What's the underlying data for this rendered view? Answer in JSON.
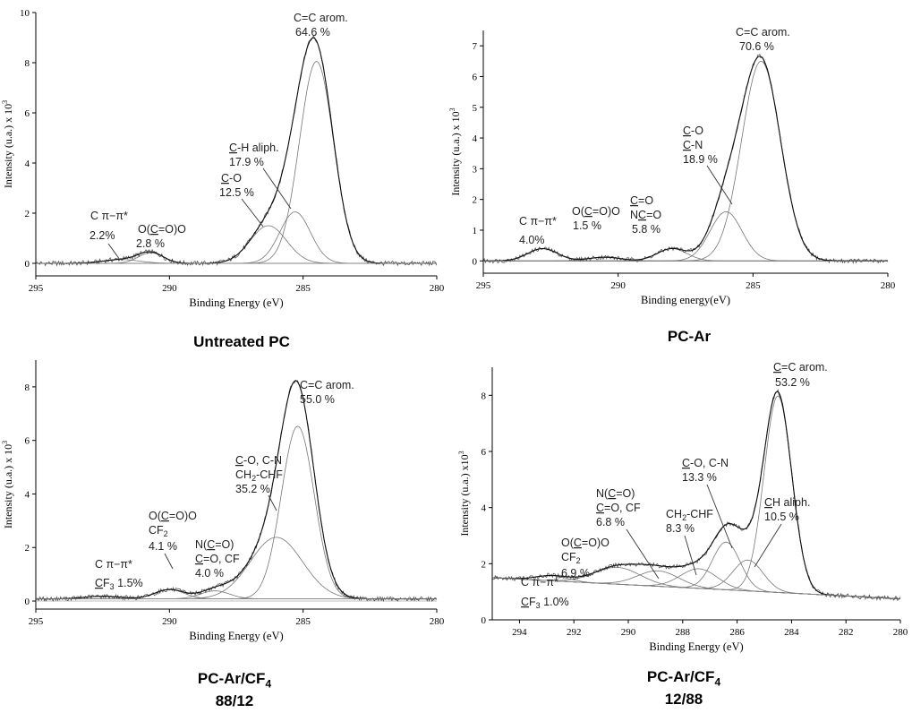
{
  "chart_data": [
    {
      "type": "line",
      "caption": "Untreated PC",
      "xlabel": "Binding Energy (eV)",
      "ylabel": "Intensity (u.a.) x 10",
      "ylabel_sup": "3",
      "xlim": [
        295,
        280
      ],
      "ylim": [
        -0.5,
        10
      ],
      "xticks": [
        295,
        290,
        285,
        280
      ],
      "yticks": [
        0,
        2,
        4,
        6,
        8,
        10
      ],
      "x_reversed": true,
      "peaks": [
        {
          "label": "C=C arom.",
          "value": "64.6 %",
          "center": 284.5,
          "height": 8.05,
          "fwhm": 1.5
        },
        {
          "label": "C-H aliph.",
          "value": "17.9 %",
          "center": 285.3,
          "height": 2.05,
          "fwhm": 1.35
        },
        {
          "label": "C-O",
          "value": "12.5 %",
          "center": 286.3,
          "height": 1.5,
          "fwhm": 1.6
        },
        {
          "label": "O(C=O)O",
          "value": "2.8 %",
          "center": 290.7,
          "height": 0.42,
          "fwhm": 1.1
        },
        {
          "label": "C π–π*",
          "value": "2.2%",
          "center": 291.8,
          "height": 0.15,
          "fwhm": 1.6
        }
      ]
    },
    {
      "type": "line",
      "caption": "PC-Ar",
      "xlabel": "Binding energy(eV)",
      "ylabel": "Intensity (u.a.) x 10",
      "ylabel_sup": "3",
      "xlim": [
        295,
        280
      ],
      "ylim": [
        -0.4,
        7.5
      ],
      "xticks": [
        295,
        290,
        285,
        280
      ],
      "yticks": [
        0,
        1,
        2,
        3,
        4,
        5,
        6,
        7
      ],
      "x_reversed": true,
      "peaks": [
        {
          "label": "C=C arom.",
          "value": "70.6 %",
          "center": 284.7,
          "height": 6.5,
          "fwhm": 1.7
        },
        {
          "label": "C-O / C-N",
          "value": "18.9 %",
          "center": 286.0,
          "height": 1.6,
          "fwhm": 1.4
        },
        {
          "label": "C=O / NC=O",
          "value": "5.8 %",
          "center": 288.0,
          "height": 0.4,
          "fwhm": 1.3
        },
        {
          "label": "O(C=O)O",
          "value": "1.5 %",
          "center": 290.5,
          "height": 0.12,
          "fwhm": 1.4
        },
        {
          "label": "C π–π*",
          "value": "4.0%",
          "center": 292.8,
          "height": 0.4,
          "fwhm": 1.3
        }
      ]
    },
    {
      "type": "line",
      "caption": "PC-Ar/CF",
      "caption_sub": "4",
      "caption_line2": "88/12",
      "xlabel": "Binding Energy (eV)",
      "ylabel": "Intensity (u.a.) x 10",
      "ylabel_sup": "3",
      "xlim": [
        295,
        280
      ],
      "ylim": [
        -0.3,
        9
      ],
      "xticks": [
        295,
        290,
        285,
        280
      ],
      "yticks": [
        0,
        2,
        4,
        6,
        8
      ],
      "x_reversed": true,
      "peaks": [
        {
          "label": "C=C arom.",
          "value": "55.0 %",
          "center": 285.2,
          "height": 6.45,
          "fwhm": 1.45
        },
        {
          "label": "C-O, C-N / CH2-CHF",
          "value": "35.2 %",
          "center": 286.0,
          "height": 2.3,
          "fwhm": 2.3
        },
        {
          "label": "N(C=O) / C=O, CF",
          "value": "4.0 %",
          "center": 288.3,
          "height": 0.3,
          "fwhm": 1.3
        },
        {
          "label": "O(C=O)O / CF2",
          "value": "4.1 %",
          "center": 290.0,
          "height": 0.35,
          "fwhm": 1.3
        },
        {
          "label": "C π–π* / CF3",
          "value": "1.5%",
          "center": 292.5,
          "height": 0.1,
          "fwhm": 1.6
        }
      ]
    },
    {
      "type": "line",
      "caption": "PC-Ar/CF",
      "caption_sub": "4",
      "caption_line2": "12/88",
      "xlabel": "Binding Energy (eV)",
      "ylabel": "Intensity (u.a.) x10",
      "ylabel_sup": "3",
      "xlim": [
        295,
        280
      ],
      "ylim": [
        0,
        9
      ],
      "xticks": [
        294,
        292,
        290,
        288,
        286,
        284,
        282,
        280
      ],
      "yticks": [
        0,
        2,
        4,
        6,
        8
      ],
      "x_reversed": true,
      "peaks": [
        {
          "label": "C=C arom.",
          "value": "53.2 %",
          "center": 284.5,
          "height": 7.0,
          "fwhm": 1.2
        },
        {
          "label": "CH aliph.",
          "value": "10.5 %",
          "center": 285.6,
          "height": 1.1,
          "fwhm": 1.3
        },
        {
          "label": "C-O, C-N",
          "value": "13.3 %",
          "center": 286.4,
          "height": 1.7,
          "fwhm": 1.2
        },
        {
          "label": "CH2-CHF",
          "value": "8.3 %",
          "center": 287.4,
          "height": 0.7,
          "fwhm": 1.6
        },
        {
          "label": "N(C=O) / C=O, CF",
          "value": "6.8 %",
          "center": 288.9,
          "height": 0.55,
          "fwhm": 1.8
        },
        {
          "label": "O(C=O)O / CF2",
          "value": "6.9 %",
          "center": 290.4,
          "height": 0.6,
          "fwhm": 2.0
        },
        {
          "label": "C π–π* / CF3",
          "value": "1.0%",
          "center": 292.8,
          "height": 0.18,
          "fwhm": 1.4
        }
      ]
    }
  ]
}
